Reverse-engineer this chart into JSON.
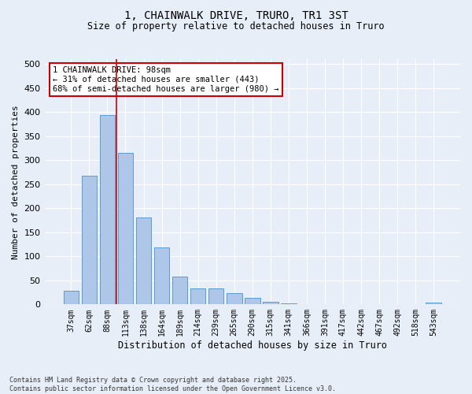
{
  "title_line1": "1, CHAINWALK DRIVE, TRURO, TR1 3ST",
  "title_line2": "Size of property relative to detached houses in Truro",
  "xlabel": "Distribution of detached houses by size in Truro",
  "ylabel": "Number of detached properties",
  "categories": [
    "37sqm",
    "62sqm",
    "88sqm",
    "113sqm",
    "138sqm",
    "164sqm",
    "189sqm",
    "214sqm",
    "239sqm",
    "265sqm",
    "290sqm",
    "315sqm",
    "341sqm",
    "366sqm",
    "391sqm",
    "417sqm",
    "442sqm",
    "467sqm",
    "492sqm",
    "518sqm",
    "543sqm"
  ],
  "values": [
    29,
    267,
    393,
    315,
    181,
    118,
    58,
    34,
    34,
    24,
    13,
    6,
    2,
    1,
    1,
    0,
    0,
    0,
    0,
    0,
    4
  ],
  "bar_color": "#aec6e8",
  "bar_edge_color": "#5b9bd5",
  "background_color": "#e8eef8",
  "grid_color": "#ffffff",
  "vline_x": 2.5,
  "vline_color": "#cc0000",
  "annotation_text": "1 CHAINWALK DRIVE: 98sqm\n← 31% of detached houses are smaller (443)\n68% of semi-detached houses are larger (980) →",
  "annotation_box_color": "#cc0000",
  "ylim": [
    0,
    510
  ],
  "yticks": [
    0,
    50,
    100,
    150,
    200,
    250,
    300,
    350,
    400,
    450,
    500
  ],
  "footer": "Contains HM Land Registry data © Crown copyright and database right 2025.\nContains public sector information licensed under the Open Government Licence v3.0.",
  "bar_width": 0.85
}
